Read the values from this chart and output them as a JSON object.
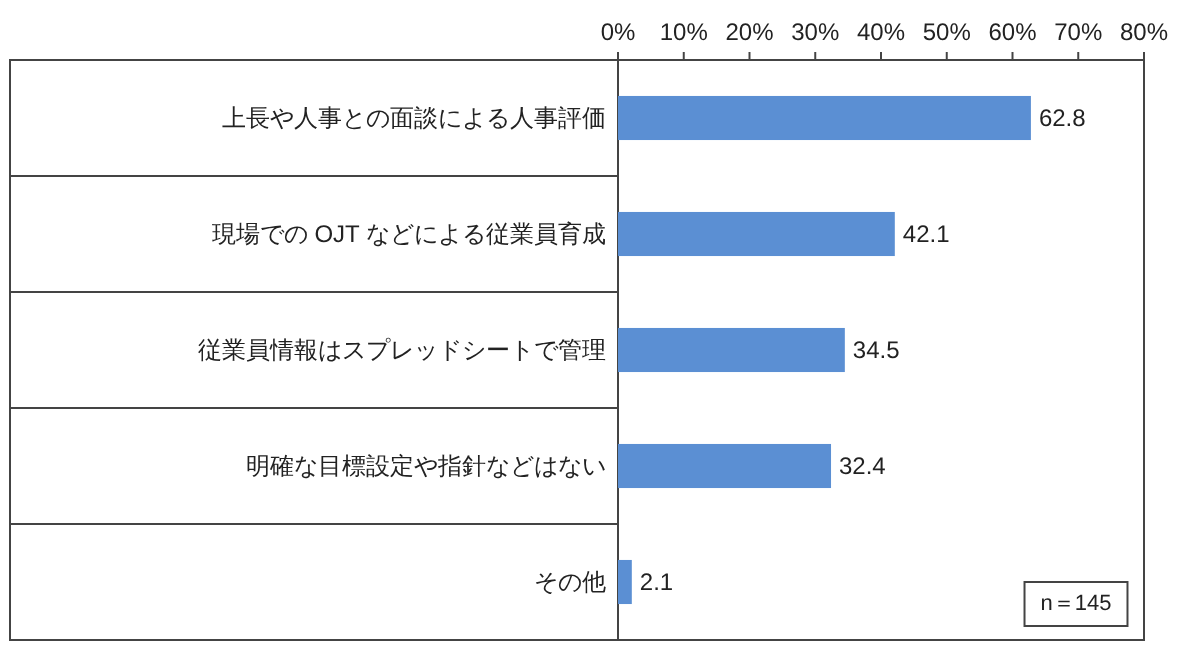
{
  "chart_data": {
    "type": "bar",
    "orientation": "horizontal",
    "categories": [
      "上長や人事との面談による人事評価",
      "現場での OJT などによる従業員育成",
      "従業員情報はスプレッドシートで管理",
      "明確な目標設定や指針などはない",
      "その他"
    ],
    "values": [
      62.8,
      42.1,
      34.5,
      32.4,
      2.1
    ],
    "color": "#5b8fd3",
    "xlim": [
      0,
      80
    ],
    "xticks": [
      {
        "value": 0,
        "label": "0%"
      },
      {
        "value": 10,
        "label": "10%"
      },
      {
        "value": 20,
        "label": "20%"
      },
      {
        "value": 30,
        "label": "30%"
      },
      {
        "value": 40,
        "label": "40%"
      },
      {
        "value": 50,
        "label": "50%"
      },
      {
        "value": 60,
        "label": "60%"
      },
      {
        "value": 70,
        "label": "70%"
      },
      {
        "value": 80,
        "label": "80%"
      }
    ],
    "data_labels": true,
    "annotations": [
      "n＝145"
    ]
  }
}
